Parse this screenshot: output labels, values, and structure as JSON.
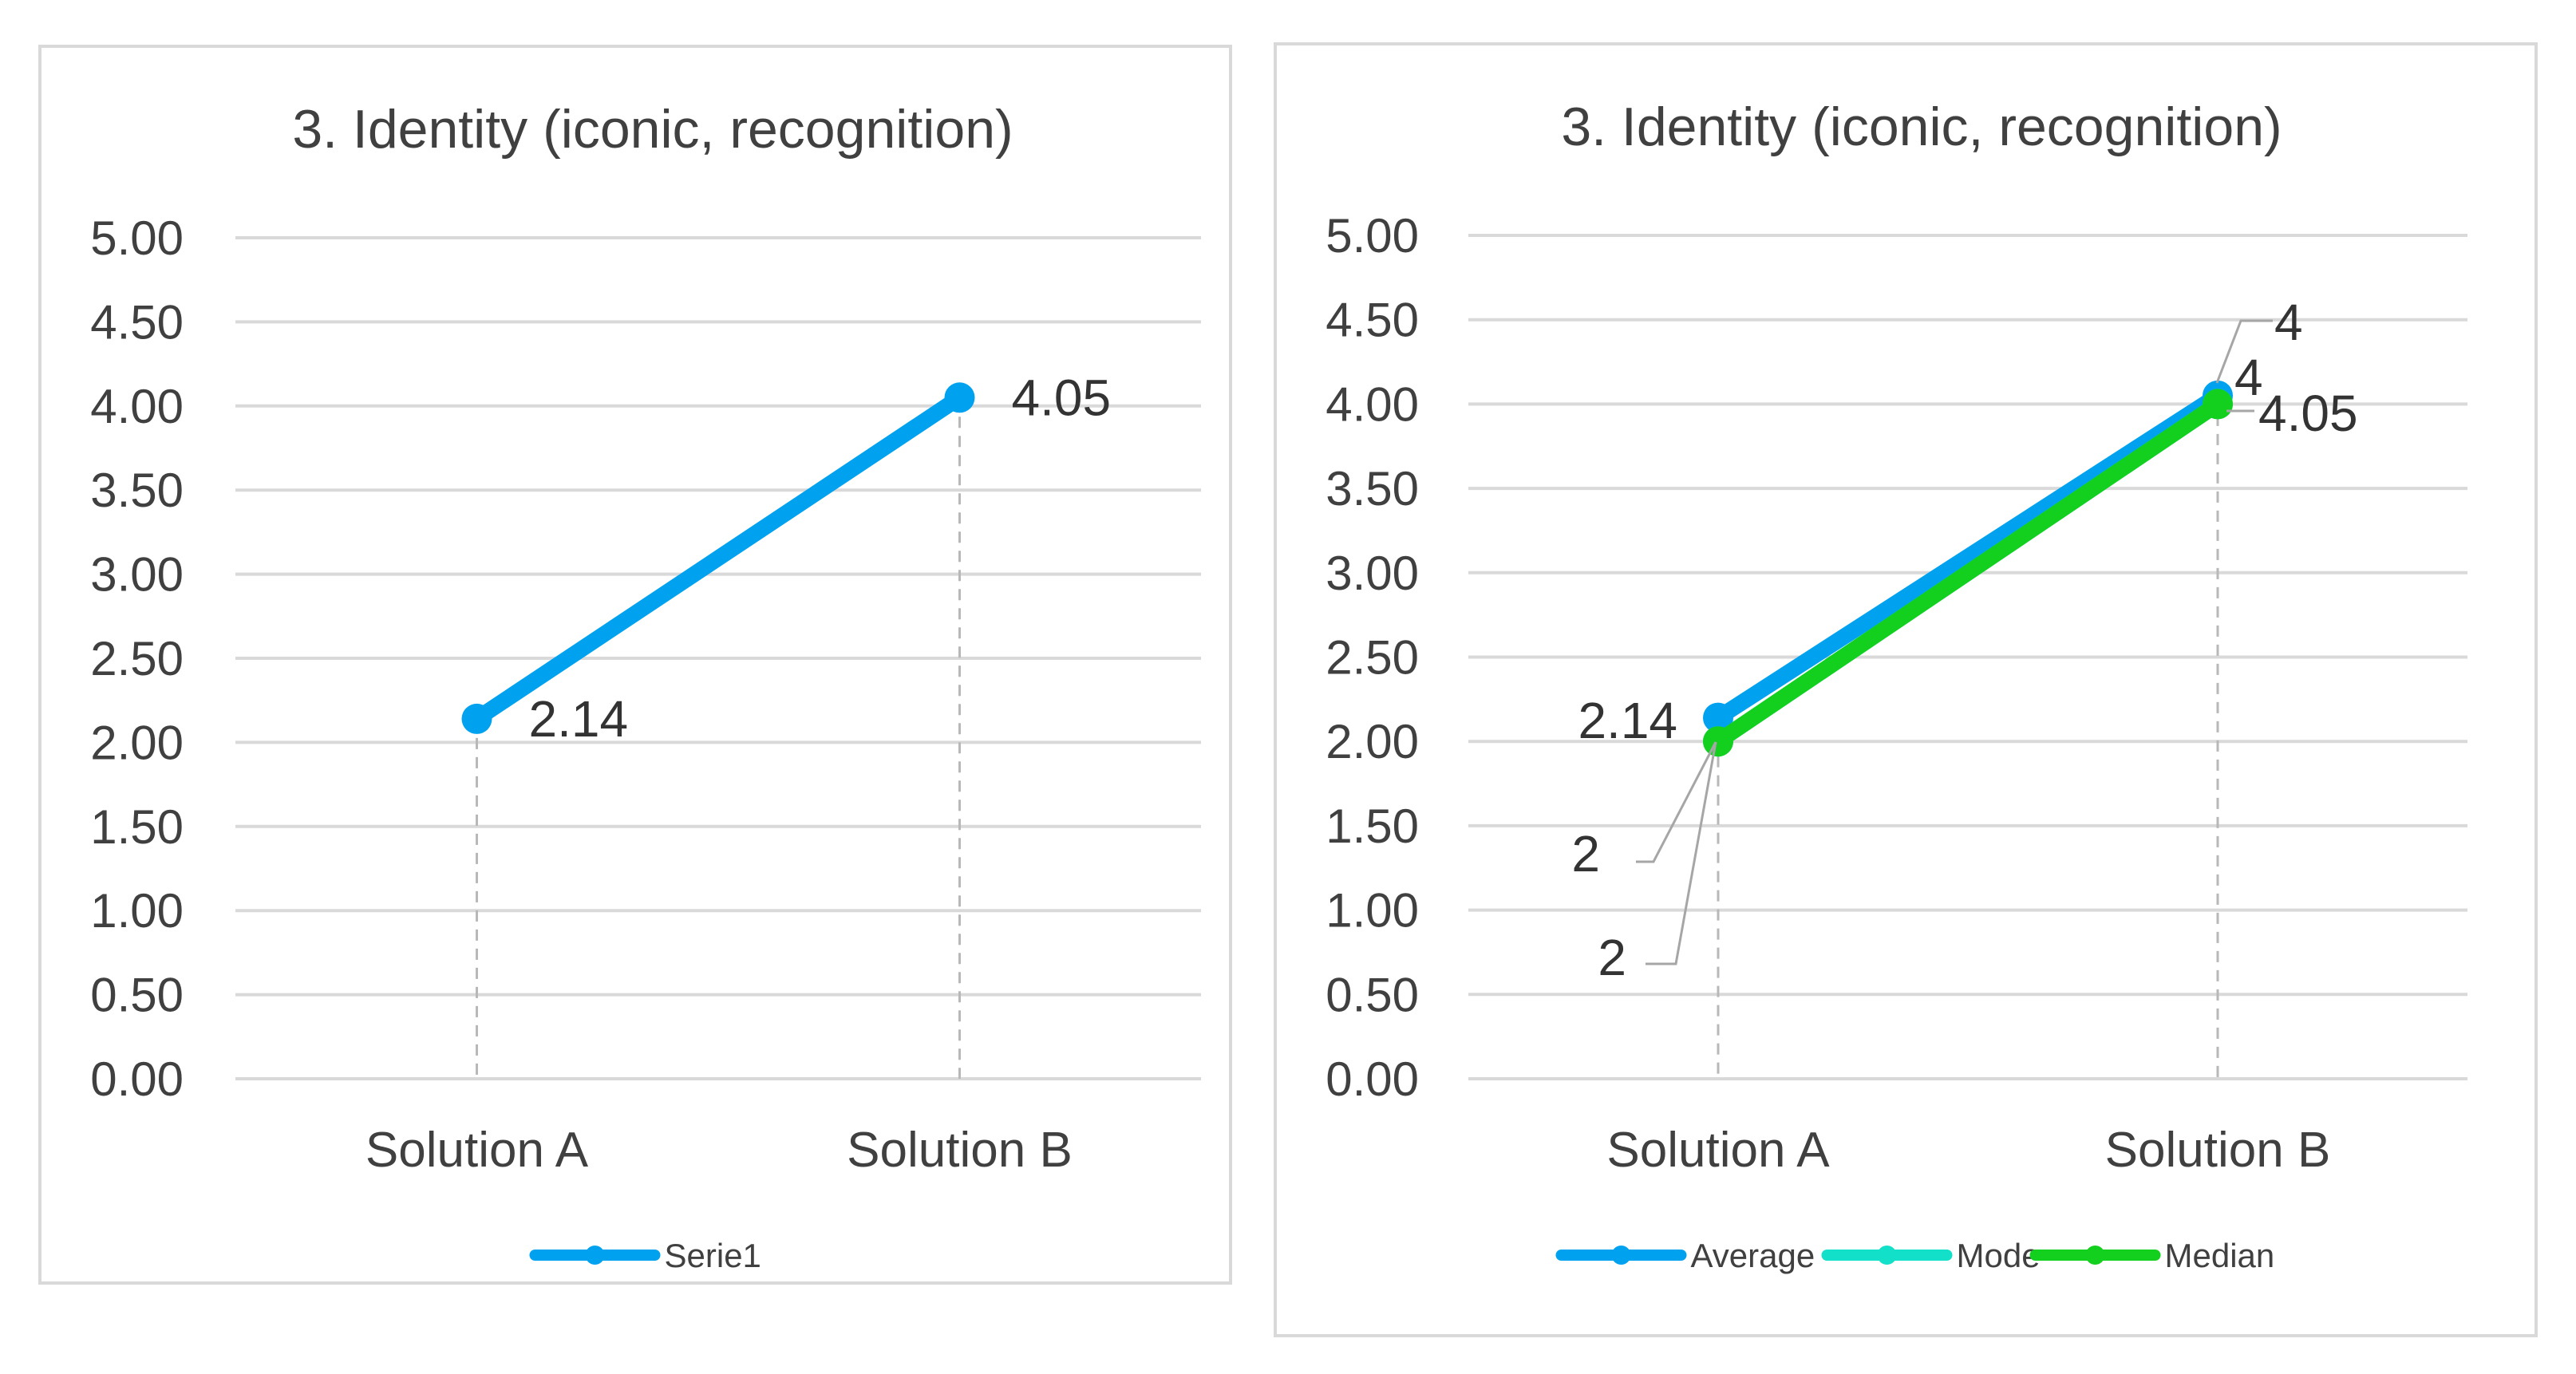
{
  "chart_data": [
    {
      "type": "line",
      "title": "3. Identity (iconic, recognition)",
      "categories": [
        "Solution A",
        "Solution B"
      ],
      "ylim": [
        0,
        5
      ],
      "yticks": [
        "5.00",
        "4.50",
        "4.00",
        "3.50",
        "3.00",
        "2.50",
        "2.00",
        "1.50",
        "1.00",
        "0.50",
        "0.00"
      ],
      "grid": true,
      "drop_lines": true,
      "legend_position": "bottom",
      "series": [
        {
          "name": "Serie1",
          "values": [
            2.14,
            4.05
          ],
          "labels": [
            "2.14",
            "4.05"
          ],
          "color": "#00a2f0"
        }
      ]
    },
    {
      "type": "line",
      "title": "3. Identity (iconic, recognition)",
      "categories": [
        "Solution A",
        "Solution B"
      ],
      "ylim": [
        0,
        5
      ],
      "yticks": [
        "5.00",
        "4.50",
        "4.00",
        "3.50",
        "3.00",
        "2.50",
        "2.00",
        "1.50",
        "1.00",
        "0.50",
        "0.00"
      ],
      "grid": true,
      "drop_lines": true,
      "legend_position": "bottom",
      "series": [
        {
          "name": "Average",
          "values": [
            2.14,
            4.05
          ],
          "labels": [
            "2.14",
            "4.05"
          ],
          "color": "#00a2f0"
        },
        {
          "name": "Mode",
          "values": [
            2,
            4
          ],
          "labels": [
            "2",
            "4"
          ],
          "color": "#13e0c8"
        },
        {
          "name": "Median",
          "values": [
            2,
            4
          ],
          "labels": [
            "2",
            "4"
          ],
          "color": "#14d01e"
        }
      ]
    }
  ]
}
